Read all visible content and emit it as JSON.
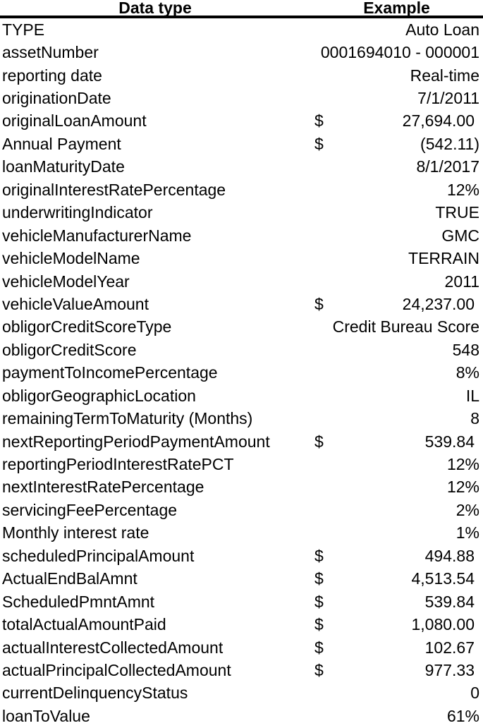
{
  "colors": {
    "background": "#ffffff",
    "text": "#000000",
    "header_rule": "#000000"
  },
  "table": {
    "columns": [
      "Data type",
      "Example"
    ],
    "currency_symbol": "$",
    "rows": [
      {
        "label": "TYPE",
        "value": "Auto Loan",
        "currency": false
      },
      {
        "label": "assetNumber",
        "value": "0001694010 - 000001",
        "currency": false
      },
      {
        "label": "reporting date",
        "value": "Real-time",
        "currency": false
      },
      {
        "label": "originationDate",
        "value": "7/1/2011",
        "currency": false
      },
      {
        "label": "originalLoanAmount",
        "value": "27,694.00",
        "currency": true
      },
      {
        "label": "Annual Payment",
        "value": "(542.11)",
        "currency": true
      },
      {
        "label": "loanMaturityDate",
        "value": "8/1/2017",
        "currency": false
      },
      {
        "label": "originalInterestRatePercentage",
        "value": "12%",
        "currency": false
      },
      {
        "label": "underwritingIndicator",
        "value": "TRUE",
        "currency": false
      },
      {
        "label": "vehicleManufacturerName",
        "value": "GMC",
        "currency": false
      },
      {
        "label": "vehicleModelName",
        "value": "TERRAIN",
        "currency": false
      },
      {
        "label": "vehicleModelYear",
        "value": "2011",
        "currency": false
      },
      {
        "label": "vehicleValueAmount",
        "value": "24,237.00",
        "currency": true
      },
      {
        "label": "obligorCreditScoreType",
        "value": "Credit Bureau Score",
        "currency": false
      },
      {
        "label": "obligorCreditScore",
        "value": "548",
        "currency": false
      },
      {
        "label": "paymentToIncomePercentage",
        "value": "8%",
        "currency": false
      },
      {
        "label": "obligorGeographicLocation",
        "value": "IL",
        "currency": false
      },
      {
        "label": "remainingTermToMaturity (Months)",
        "value": "8",
        "currency": false
      },
      {
        "label": "nextReportingPeriodPaymentAmount",
        "value": "539.84",
        "currency": true
      },
      {
        "label": "reportingPeriodInterestRatePCT",
        "value": "12%",
        "currency": false
      },
      {
        "label": "nextInterestRatePercentage",
        "value": "12%",
        "currency": false
      },
      {
        "label": "servicingFeePercentage",
        "value": "2%",
        "currency": false
      },
      {
        "label": "Monthly interest rate",
        "value": "1%",
        "currency": false
      },
      {
        "label": "scheduledPrincipalAmount",
        "value": "494.88",
        "currency": true
      },
      {
        "label": "ActualEndBalAmnt",
        "value": "4,513.54",
        "currency": true
      },
      {
        "label": "ScheduledPmntAmnt",
        "value": "539.84",
        "currency": true
      },
      {
        "label": "totalActualAmountPaid",
        "value": "1,080.00",
        "currency": true
      },
      {
        "label": "actualInterestCollectedAmount",
        "value": "102.67",
        "currency": true
      },
      {
        "label": "actualPrincipalCollectedAmount",
        "value": "977.33",
        "currency": true
      },
      {
        "label": "currentDelinquencyStatus",
        "value": "0",
        "currency": false
      },
      {
        "label": "loanToValue",
        "value": "61%",
        "currency": false
      }
    ]
  }
}
